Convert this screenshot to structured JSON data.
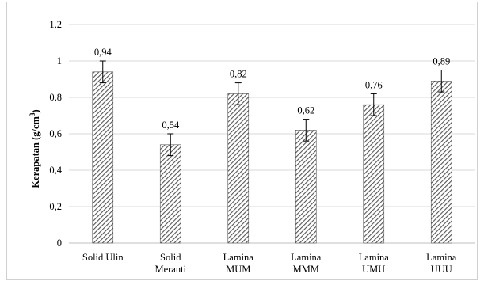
{
  "chart_data": {
    "type": "bar",
    "title": "",
    "xlabel": "",
    "ylabel": "Kerapatan (g/cm",
    "ylabel_superscript": "3",
    "ylabel_close": ")",
    "ylim": [
      0,
      1.2
    ],
    "yticks": [
      "0",
      "0,2",
      "0,4",
      "0,6",
      "0,8",
      "1",
      "1,2"
    ],
    "ytick_values": [
      0,
      0.2,
      0.4,
      0.6,
      0.8,
      1.0,
      1.2
    ],
    "grid": true,
    "categories": [
      [
        "Solid Ulin"
      ],
      [
        "Solid",
        "Meranti"
      ],
      [
        "Lamina",
        "MUM"
      ],
      [
        "Lamina",
        "MMM"
      ],
      [
        "Lamina",
        "UMU"
      ],
      [
        "Lamina",
        "UUU"
      ]
    ],
    "values": [
      0.94,
      0.54,
      0.82,
      0.62,
      0.76,
      0.89
    ],
    "value_labels": [
      "0,94",
      "0,54",
      "0,82",
      "0,62",
      "0,76",
      "0,89"
    ],
    "error": [
      0.06,
      0.06,
      0.06,
      0.06,
      0.06,
      0.06
    ],
    "colors": {
      "bar_stroke": "#555555",
      "hatch": "#555555",
      "grid": "#d9d9d9",
      "axis": "#bfbfbf",
      "error": "#000000"
    }
  }
}
